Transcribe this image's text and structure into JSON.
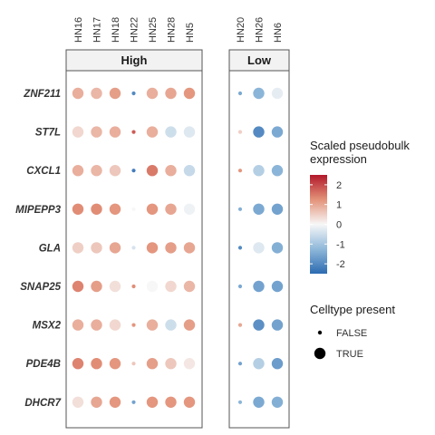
{
  "chart_data": {
    "type": "dotplot",
    "genes": [
      "ZNF211",
      "ST7L",
      "CXCL1",
      "MIPEPP3",
      "GLA",
      "SNAP25",
      "MSX2",
      "PDE4B",
      "DHCR7"
    ],
    "panels": [
      {
        "label": "High",
        "samples": [
          "HN16",
          "HN17",
          "HN18",
          "HN22",
          "HN25",
          "HN28",
          "HN5"
        ]
      },
      {
        "label": "Low",
        "samples": [
          "HN20",
          "HN26",
          "HN6"
        ]
      }
    ],
    "values": {
      "ZNF211": {
        "HN16": 0.9,
        "HN17": 0.8,
        "HN18": 1.1,
        "HN22": -2.0,
        "HN25": 0.9,
        "HN28": 1.0,
        "HN5": 1.2,
        "HN20": -1.5,
        "HN26": -1.3,
        "HN6": -0.2
      },
      "ST7L": {
        "HN16": 0.4,
        "HN17": 0.8,
        "HN18": 0.9,
        "HN22": 1.8,
        "HN25": 0.9,
        "HN28": -0.5,
        "HN5": -0.3,
        "HN20": 0.5,
        "HN26": -2.0,
        "HN6": -1.5
      },
      "CXCL1": {
        "HN16": 0.9,
        "HN17": 0.8,
        "HN18": 0.6,
        "HN22": -2.2,
        "HN25": 1.5,
        "HN28": 0.9,
        "HN5": -0.6,
        "HN20": 1.2,
        "HN26": -0.8,
        "HN6": -1.3
      },
      "MIPEPP3": {
        "HN16": 1.3,
        "HN17": 1.3,
        "HN18": 1.2,
        "HN22": 0.0,
        "HN25": 1.2,
        "HN28": 1.0,
        "HN5": -0.1,
        "HN20": -1.4,
        "HN26": -1.5,
        "HN6": -1.6
      },
      "GLA": {
        "HN16": 0.5,
        "HN17": 0.6,
        "HN18": 1.0,
        "HN22": -0.4,
        "HN25": 1.2,
        "HN28": 1.1,
        "HN5": 1.0,
        "HN20": -2.0,
        "HN26": -0.3,
        "HN6": -1.4
      },
      "SNAP25": {
        "HN16": 1.4,
        "HN17": 1.1,
        "HN18": 0.3,
        "HN22": 1.3,
        "HN25": 0.0,
        "HN28": 0.4,
        "HN5": 0.8,
        "HN20": -1.5,
        "HN26": -1.6,
        "HN6": -1.6
      },
      "MSX2": {
        "HN16": 0.9,
        "HN17": 0.9,
        "HN18": 0.4,
        "HN22": 1.2,
        "HN25": 0.9,
        "HN28": -0.5,
        "HN5": 1.1,
        "HN20": 1.0,
        "HN26": -1.9,
        "HN6": -1.6
      },
      "PDE4B": {
        "HN16": 1.4,
        "HN17": 1.3,
        "HN18": 1.2,
        "HN22": 0.6,
        "HN25": 1.1,
        "HN28": 0.6,
        "HN5": 0.2,
        "HN20": -1.6,
        "HN26": -0.8,
        "HN6": -1.7
      },
      "DHCR7": {
        "HN16": 0.3,
        "HN17": 1.0,
        "HN18": 1.2,
        "HN22": -1.6,
        "HN25": 1.2,
        "HN28": 1.2,
        "HN5": 1.2,
        "HN20": -1.3,
        "HN26": -1.5,
        "HN6": -1.4
      }
    },
    "celltype_present": {
      "HN22": false,
      "HN20": false
    },
    "color_legend": {
      "title": "Scaled pseudobulk\nexpression",
      "ticks": [
        2,
        1,
        0,
        -1,
        -2
      ],
      "range": [
        -2.5,
        2.5
      ],
      "colors": [
        "#2c6bb1",
        "#ffffff",
        "#b2182b"
      ]
    },
    "size_legend": {
      "title": "Celltype present",
      "items": [
        "FALSE",
        "TRUE"
      ]
    },
    "legend_position": "right"
  }
}
